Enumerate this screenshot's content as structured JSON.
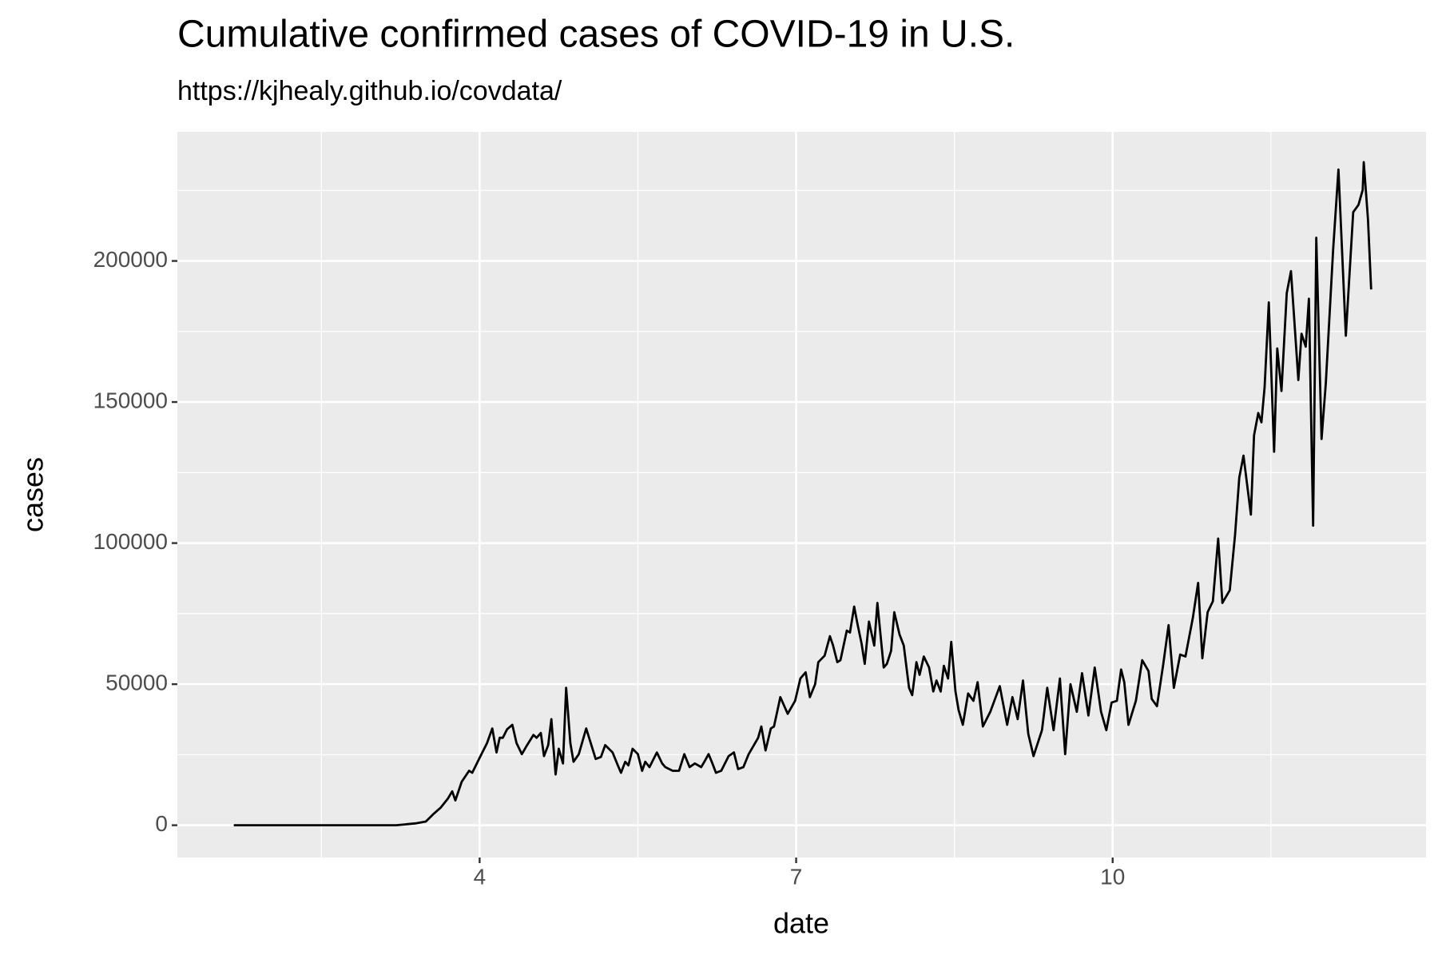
{
  "chart_data": {
    "type": "line",
    "title": "Cumulative confirmed cases of COVID-19 in U.S.",
    "subtitle": "https://kjhealy.github.io/covdata/",
    "x_label": "date",
    "y_label": "cases",
    "color": "#000000",
    "background": "#ebebeb",
    "grid": true,
    "xlim": [
      1.135,
      12.97
    ],
    "ylim": [
      -11438,
      245752
    ],
    "xticks": [
      4,
      7,
      10
    ],
    "x_minor_ticks": [
      2.5,
      5.5,
      8.5,
      11.5
    ],
    "yticks": [
      0,
      50000,
      100000,
      150000,
      200000
    ],
    "y_minor_ticks": [
      25000,
      75000,
      125000,
      175000,
      225000
    ],
    "x": [
      1.67,
      3.21,
      3.39,
      3.49,
      3.56,
      3.63,
      3.7,
      3.74,
      3.77,
      3.83,
      3.9,
      3.93,
      4.0,
      4.07,
      4.12,
      4.16,
      4.19,
      4.22,
      4.26,
      4.31,
      4.35,
      4.4,
      4.45,
      4.51,
      4.54,
      4.58,
      4.61,
      4.65,
      4.68,
      4.72,
      4.75,
      4.79,
      4.82,
      4.86,
      4.89,
      4.94,
      5.01,
      5.1,
      5.15,
      5.19,
      5.26,
      5.31,
      5.34,
      5.38,
      5.41,
      5.45,
      5.5,
      5.54,
      5.57,
      5.61,
      5.68,
      5.73,
      5.76,
      5.83,
      5.89,
      5.94,
      5.99,
      6.04,
      6.1,
      6.13,
      6.17,
      6.2,
      6.24,
      6.29,
      6.36,
      6.41,
      6.45,
      6.5,
      6.55,
      6.64,
      6.67,
      6.71,
      6.76,
      6.79,
      6.85,
      6.92,
      6.99,
      7.04,
      7.09,
      7.13,
      7.18,
      7.21,
      7.27,
      7.32,
      7.35,
      7.39,
      7.42,
      7.48,
      7.51,
      7.55,
      7.58,
      7.62,
      7.65,
      7.69,
      7.74,
      7.77,
      7.83,
      7.86,
      7.9,
      7.93,
      7.98,
      8.02,
      8.07,
      8.1,
      8.14,
      8.17,
      8.21,
      8.26,
      8.3,
      8.33,
      8.37,
      8.4,
      8.44,
      8.47,
      8.51,
      8.54,
      8.58,
      8.63,
      8.68,
      8.72,
      8.77,
      8.84,
      8.93,
      9.0,
      9.05,
      9.1,
      9.15,
      9.2,
      9.25,
      9.33,
      9.38,
      9.44,
      9.5,
      9.55,
      9.6,
      9.66,
      9.71,
      9.77,
      9.83,
      9.89,
      9.94,
      9.99,
      10.04,
      10.08,
      10.11,
      10.15,
      10.22,
      10.28,
      10.34,
      10.37,
      10.42,
      10.48,
      10.53,
      10.58,
      10.64,
      10.69,
      10.76,
      10.81,
      10.85,
      10.9,
      10.95,
      11.0,
      11.04,
      11.11,
      11.16,
      11.2,
      11.24,
      11.31,
      11.34,
      11.38,
      11.41,
      11.44,
      11.48,
      11.53,
      11.56,
      11.6,
      11.65,
      11.69,
      11.76,
      11.79,
      11.83,
      11.86,
      11.9,
      11.93,
      11.98,
      12.02,
      12.09,
      12.14,
      12.21,
      12.28,
      12.33,
      12.37,
      12.38,
      12.42,
      12.45
    ],
    "values": [
      0,
      0,
      650,
      1300,
      3900,
      6200,
      9500,
      12000,
      8800,
      15400,
      19300,
      18600,
      23900,
      29100,
      34300,
      25800,
      31000,
      31000,
      34000,
      35600,
      29100,
      25200,
      28400,
      32000,
      31000,
      32700,
      24500,
      28400,
      37600,
      18000,
      27100,
      21900,
      48700,
      29100,
      22500,
      25200,
      34300,
      23500,
      24200,
      28400,
      25800,
      21200,
      18600,
      22500,
      21200,
      27100,
      25200,
      19300,
      22500,
      20600,
      25800,
      21900,
      20600,
      19300,
      19300,
      25200,
      20600,
      21900,
      20600,
      22500,
      25200,
      22500,
      18600,
      19300,
      24500,
      25800,
      19900,
      20600,
      25200,
      31000,
      35000,
      26500,
      34300,
      35000,
      45400,
      39500,
      44100,
      52000,
      54200,
      45400,
      50000,
      57800,
      60100,
      67000,
      63700,
      57800,
      58500,
      69000,
      68300,
      77500,
      71600,
      64400,
      57200,
      72200,
      63700,
      78800,
      55900,
      57200,
      61800,
      75500,
      67600,
      63700,
      48700,
      46100,
      57800,
      53300,
      59800,
      55900,
      47400,
      51300,
      47400,
      56500,
      52000,
      65000,
      47400,
      40800,
      35600,
      46700,
      44100,
      50700,
      35000,
      40200,
      49300,
      35600,
      45400,
      37600,
      51300,
      32400,
      24500,
      33700,
      48700,
      33700,
      52000,
      25200,
      50000,
      40200,
      53900,
      38900,
      55900,
      40200,
      33700,
      43500,
      44100,
      55200,
      50700,
      35600,
      44100,
      58500,
      54600,
      44800,
      42200,
      57200,
      70900,
      48700,
      60500,
      59800,
      73500,
      85900,
      59200,
      75500,
      79400,
      101600,
      78800,
      83300,
      102900,
      123200,
      131000,
      110100,
      138200,
      146100,
      142800,
      155200,
      185300,
      132400,
      169000,
      153900,
      188600,
      196400,
      157800,
      174200,
      169600,
      186600,
      106200,
      208200,
      136900,
      156500,
      204200,
      232400,
      173500,
      217300,
      219900,
      225200,
      235000,
      214700,
      189900
    ]
  }
}
